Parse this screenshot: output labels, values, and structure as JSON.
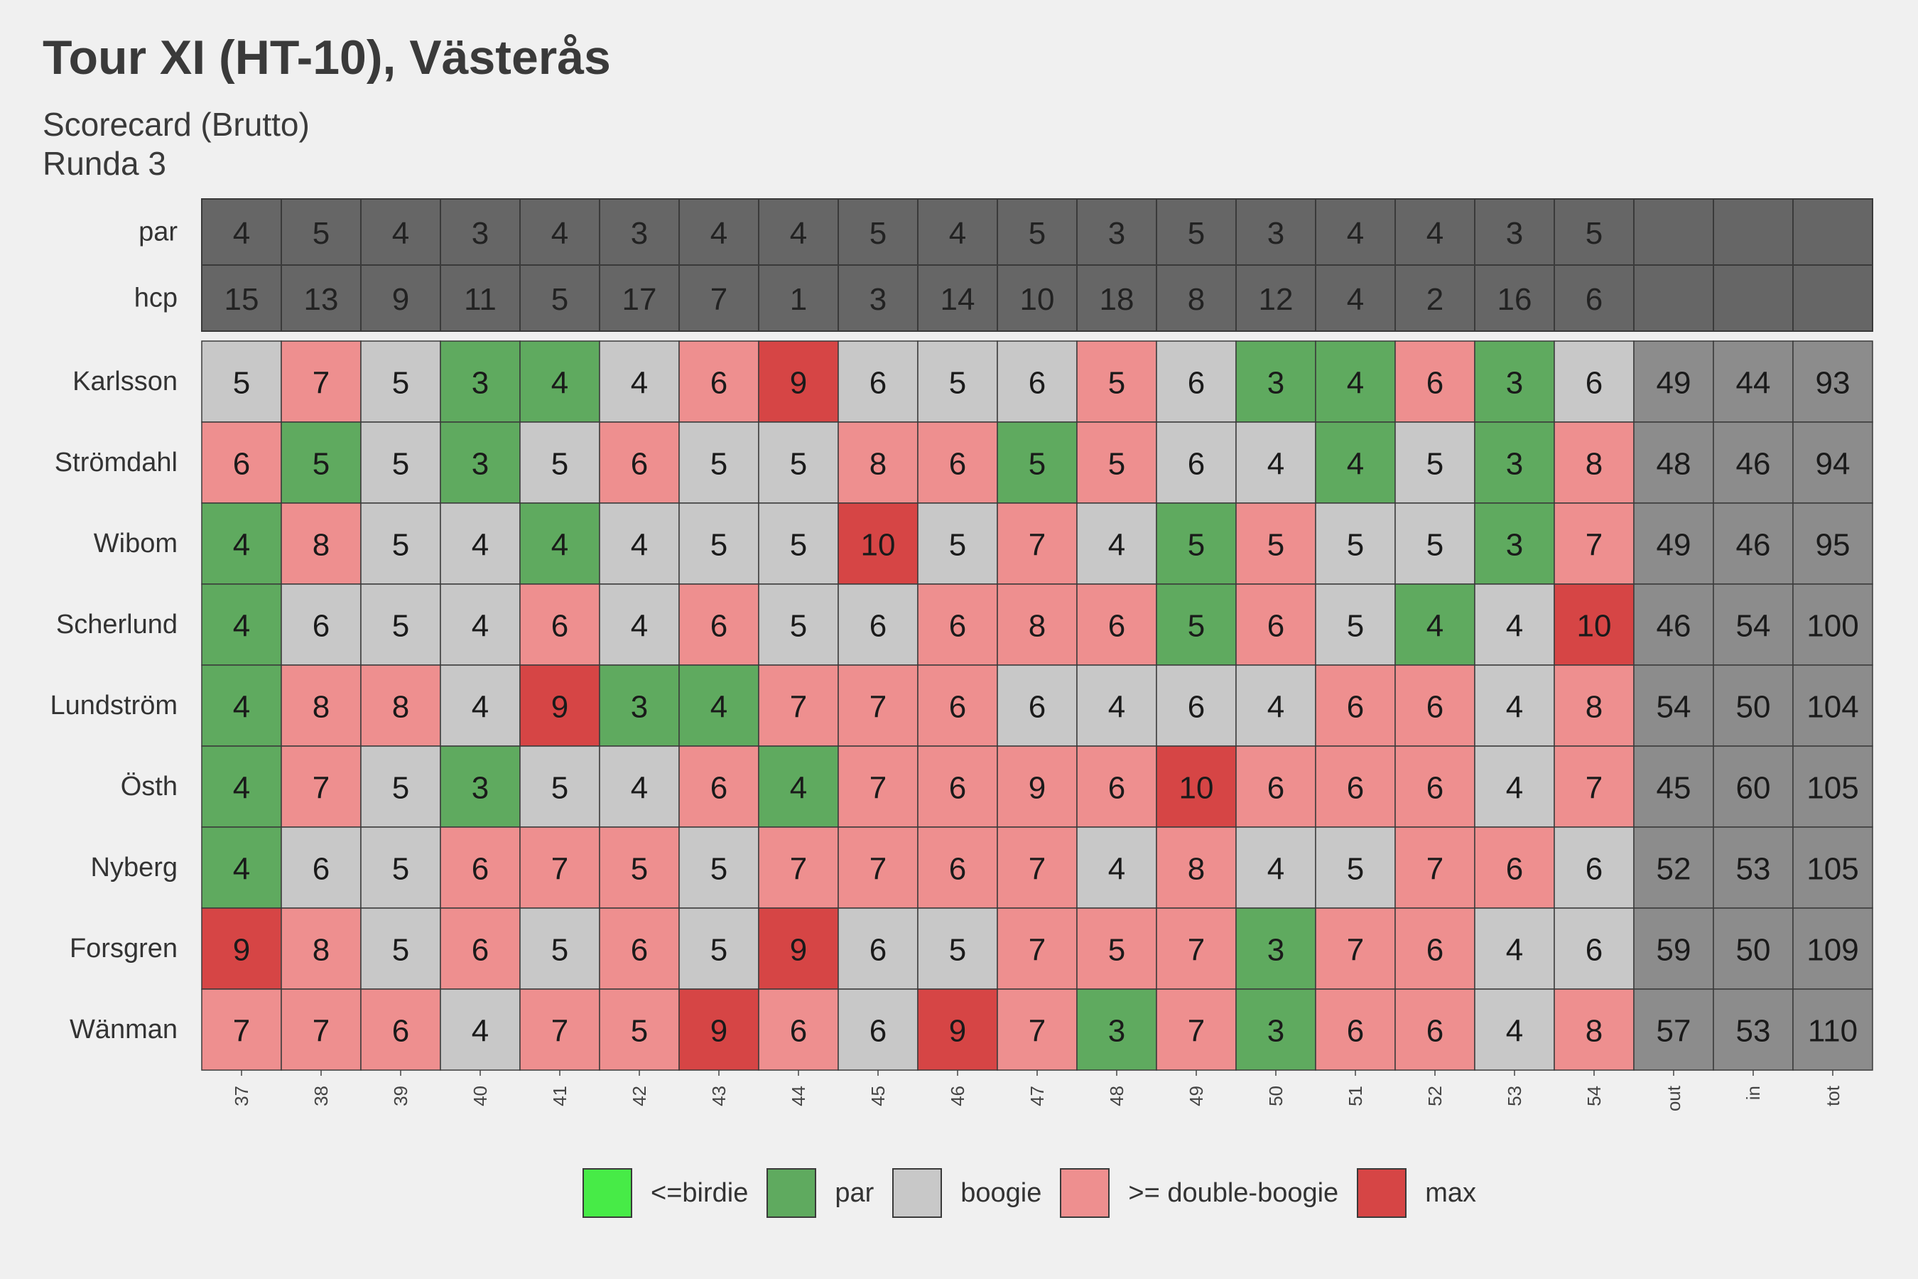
{
  "title": "Tour XI (HT-10), Västerås",
  "subtitle_lines": [
    "Scorecard (Brutto)",
    "Runda 3"
  ],
  "colors": {
    "birdie": "#47eb47",
    "par": "#5faa5f",
    "boogie": "#c8c8c8",
    "double_boogie": "#ee8f8f",
    "max": "#d64545",
    "header": "#666666",
    "summary": "#8c8c8c",
    "border": "#3a3a3a"
  },
  "chart_data": {
    "type": "table",
    "columns": [
      "37",
      "38",
      "39",
      "40",
      "41",
      "42",
      "43",
      "44",
      "45",
      "46",
      "47",
      "48",
      "49",
      "50",
      "51",
      "52",
      "53",
      "54",
      "out",
      "in",
      "tot"
    ],
    "header_rows": [
      {
        "label": "par",
        "values": [
          "4",
          "5",
          "4",
          "3",
          "4",
          "3",
          "4",
          "4",
          "5",
          "4",
          "5",
          "3",
          "5",
          "3",
          "4",
          "4",
          "3",
          "5"
        ]
      },
      {
        "label": "hcp",
        "values": [
          "15",
          "13",
          "9",
          "11",
          "5",
          "17",
          "7",
          "1",
          "3",
          "14",
          "10",
          "18",
          "8",
          "12",
          "4",
          "2",
          "16",
          "6"
        ]
      }
    ],
    "players": [
      {
        "name": "Karlsson",
        "scores": [
          5,
          7,
          5,
          3,
          4,
          4,
          6,
          9,
          6,
          5,
          6,
          5,
          6,
          3,
          4,
          6,
          3,
          6
        ],
        "out": 49,
        "in": 44,
        "tot": 93,
        "categories": [
          "boogie",
          "double_boogie",
          "boogie",
          "par",
          "par",
          "boogie",
          "double_boogie",
          "max",
          "boogie",
          "boogie",
          "boogie",
          "double_boogie",
          "boogie",
          "par",
          "par",
          "double_boogie",
          "par",
          "boogie"
        ]
      },
      {
        "name": "Strömdahl",
        "scores": [
          6,
          5,
          5,
          3,
          5,
          6,
          5,
          5,
          8,
          6,
          5,
          5,
          6,
          4,
          4,
          5,
          3,
          8
        ],
        "out": 48,
        "in": 46,
        "tot": 94,
        "categories": [
          "double_boogie",
          "par",
          "boogie",
          "par",
          "boogie",
          "double_boogie",
          "boogie",
          "boogie",
          "double_boogie",
          "double_boogie",
          "par",
          "double_boogie",
          "boogie",
          "boogie",
          "par",
          "boogie",
          "par",
          "double_boogie"
        ]
      },
      {
        "name": "Wibom",
        "scores": [
          4,
          8,
          5,
          4,
          4,
          4,
          5,
          5,
          10,
          5,
          7,
          4,
          5,
          5,
          5,
          5,
          3,
          7
        ],
        "out": 49,
        "in": 46,
        "tot": 95,
        "categories": [
          "par",
          "double_boogie",
          "boogie",
          "boogie",
          "par",
          "boogie",
          "boogie",
          "boogie",
          "max",
          "boogie",
          "double_boogie",
          "boogie",
          "par",
          "double_boogie",
          "boogie",
          "boogie",
          "par",
          "double_boogie"
        ]
      },
      {
        "name": "Scherlund",
        "scores": [
          4,
          6,
          5,
          4,
          6,
          4,
          6,
          5,
          6,
          6,
          8,
          6,
          5,
          6,
          5,
          4,
          4,
          10
        ],
        "out": 46,
        "in": 54,
        "tot": 100,
        "categories": [
          "par",
          "boogie",
          "boogie",
          "boogie",
          "double_boogie",
          "boogie",
          "double_boogie",
          "boogie",
          "boogie",
          "double_boogie",
          "double_boogie",
          "double_boogie",
          "par",
          "double_boogie",
          "boogie",
          "par",
          "boogie",
          "max"
        ]
      },
      {
        "name": "Lundström",
        "scores": [
          4,
          8,
          8,
          4,
          9,
          3,
          4,
          7,
          7,
          6,
          6,
          4,
          6,
          4,
          6,
          6,
          4,
          8
        ],
        "out": 54,
        "in": 50,
        "tot": 104,
        "categories": [
          "par",
          "double_boogie",
          "double_boogie",
          "boogie",
          "max",
          "par",
          "par",
          "double_boogie",
          "double_boogie",
          "double_boogie",
          "boogie",
          "boogie",
          "boogie",
          "boogie",
          "double_boogie",
          "double_boogie",
          "boogie",
          "double_boogie"
        ]
      },
      {
        "name": "Östh",
        "scores": [
          4,
          7,
          5,
          3,
          5,
          4,
          6,
          4,
          7,
          6,
          9,
          6,
          10,
          6,
          6,
          6,
          4,
          7
        ],
        "out": 45,
        "in": 60,
        "tot": 105,
        "categories": [
          "par",
          "double_boogie",
          "boogie",
          "par",
          "boogie",
          "boogie",
          "double_boogie",
          "par",
          "double_boogie",
          "double_boogie",
          "double_boogie",
          "double_boogie",
          "max",
          "double_boogie",
          "double_boogie",
          "double_boogie",
          "boogie",
          "double_boogie"
        ]
      },
      {
        "name": "Nyberg",
        "scores": [
          4,
          6,
          5,
          6,
          7,
          5,
          5,
          7,
          7,
          6,
          7,
          4,
          8,
          4,
          5,
          7,
          6,
          6
        ],
        "out": 52,
        "in": 53,
        "tot": 105,
        "categories": [
          "par",
          "boogie",
          "boogie",
          "double_boogie",
          "double_boogie",
          "double_boogie",
          "boogie",
          "double_boogie",
          "double_boogie",
          "double_boogie",
          "double_boogie",
          "boogie",
          "double_boogie",
          "boogie",
          "boogie",
          "double_boogie",
          "double_boogie",
          "boogie"
        ]
      },
      {
        "name": "Forsgren",
        "scores": [
          9,
          8,
          5,
          6,
          5,
          6,
          5,
          9,
          6,
          5,
          7,
          5,
          7,
          3,
          7,
          6,
          4,
          6
        ],
        "out": 59,
        "in": 50,
        "tot": 109,
        "categories": [
          "max",
          "double_boogie",
          "boogie",
          "double_boogie",
          "boogie",
          "double_boogie",
          "boogie",
          "max",
          "boogie",
          "boogie",
          "double_boogie",
          "double_boogie",
          "double_boogie",
          "par",
          "double_boogie",
          "double_boogie",
          "boogie",
          "boogie"
        ]
      },
      {
        "name": "Wänman",
        "scores": [
          7,
          7,
          6,
          4,
          7,
          5,
          9,
          6,
          6,
          9,
          7,
          3,
          7,
          3,
          6,
          6,
          4,
          8
        ],
        "out": 57,
        "in": 53,
        "tot": 110,
        "categories": [
          "double_boogie",
          "double_boogie",
          "double_boogie",
          "boogie",
          "double_boogie",
          "double_boogie",
          "max",
          "double_boogie",
          "boogie",
          "max",
          "double_boogie",
          "par",
          "double_boogie",
          "par",
          "double_boogie",
          "double_boogie",
          "boogie",
          "double_boogie"
        ]
      }
    ],
    "legend": [
      {
        "key": "birdie",
        "label": "<=birdie"
      },
      {
        "key": "par",
        "label": "par"
      },
      {
        "key": "boogie",
        "label": "boogie"
      },
      {
        "key": "double_boogie",
        "label": ">= double-boogie"
      },
      {
        "key": "max",
        "label": "max"
      }
    ],
    "legend_position": "bottom"
  }
}
